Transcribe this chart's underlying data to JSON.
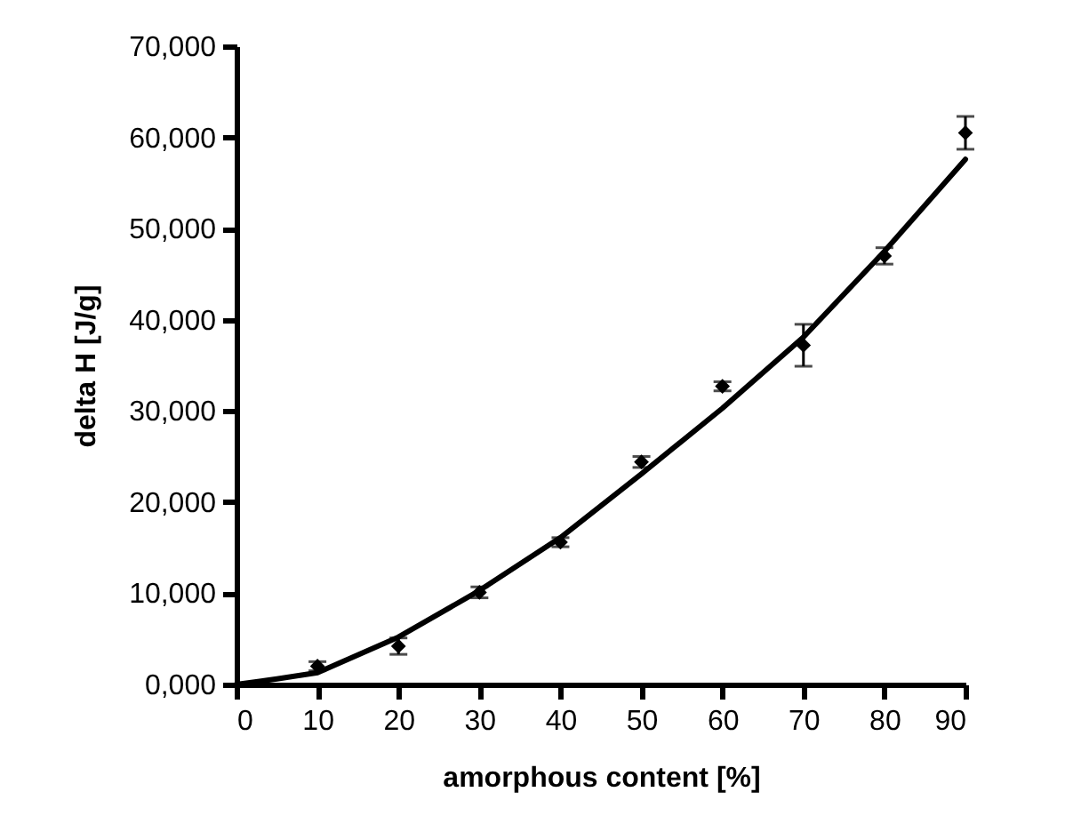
{
  "chart_data": {
    "type": "scatter",
    "xlabel": "amorphous content [%]",
    "ylabel": "delta H [J/g]",
    "xlim": [
      0,
      90
    ],
    "ylim": [
      0,
      70000
    ],
    "xticks": [
      0,
      10,
      20,
      30,
      40,
      50,
      60,
      70,
      80,
      90
    ],
    "yticks": [
      {
        "value": 0,
        "label": "0,000"
      },
      {
        "value": 10000,
        "label": "10,000"
      },
      {
        "value": 20000,
        "label": "20,000"
      },
      {
        "value": 30000,
        "label": "30,000"
      },
      {
        "value": 40000,
        "label": "40,000"
      },
      {
        "value": 50000,
        "label": "50,000"
      },
      {
        "value": 60000,
        "label": "60,000"
      },
      {
        "value": 70000,
        "label": "70,000"
      }
    ],
    "grid": false,
    "series": [
      {
        "marker": "diamond",
        "color": "#000000",
        "x": [
          10,
          20,
          30,
          40,
          50,
          60,
          70,
          80,
          90
        ],
        "values": [
          2000,
          4200,
          10100,
          15600,
          24400,
          32700,
          37200,
          47000,
          60500
        ],
        "errors": [
          500,
          900,
          600,
          500,
          600,
          500,
          2300,
          900,
          1800
        ]
      },
      {
        "type": "line",
        "line_style": "solid",
        "marker": "none",
        "color": "#000000",
        "x": [
          0,
          5,
          10,
          20,
          30,
          40,
          50,
          60,
          70,
          80,
          90
        ],
        "values": [
          0,
          600,
          1300,
          5200,
          10300,
          16100,
          23100,
          30300,
          38100,
          47500,
          57600
        ]
      }
    ]
  }
}
